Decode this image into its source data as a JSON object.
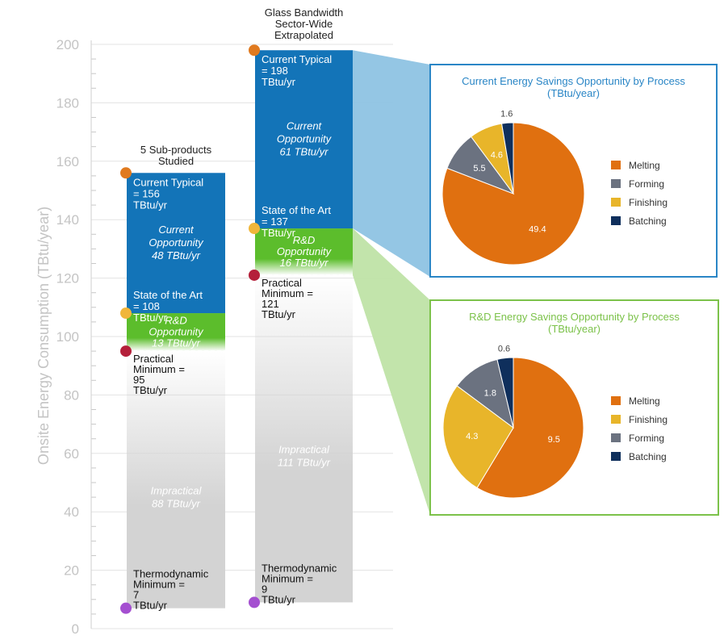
{
  "chart_data": [
    {
      "type": "bar",
      "subtype": "stacked-range",
      "ylabel": "Onsite Energy Consumption (TBtu/year)",
      "ylim": [
        0,
        200
      ],
      "yticks": [
        "0",
        "20",
        "40",
        "60",
        "80",
        "100",
        "120",
        "140",
        "160",
        "180",
        "200"
      ],
      "grid": true,
      "bars": [
        {
          "title": "5 Sub-products Studied",
          "current_typical": 156,
          "state_of_art": 108,
          "practical_min": 95,
          "thermo_min": 7,
          "labels": {
            "current_typical": "Current Typical = 156 TBtu/yr",
            "current_opportunity": "Current Opportunity 48 TBtu/yr",
            "state_of_art": "State of the Art = 108 TBtu/yr",
            "rd_opportunity": "R&D Opportunity 13 TBtu/yr",
            "practical_min": "Practical Minimum = 95 TBtu/yr",
            "impractical": "Impractical 88 TBtu/yr",
            "thermo_min": "Thermodynamic Minimum = 7 TBtu/yr"
          }
        },
        {
          "title": "Glass Bandwidth Sector-Wide Extrapolated",
          "current_typical": 198,
          "state_of_art": 137,
          "practical_min": 121,
          "thermo_min": 9,
          "labels": {
            "current_typical": "Current Typical = 198 TBtu/yr",
            "current_opportunity": "Current Opportunity 61 TBtu/yr",
            "state_of_art": "State of the Art = 137 TBtu/yr",
            "rd_opportunity": "R&D Opportunity 16 TBtu/yr",
            "practical_min": "Practical Minimum = 121 TBtu/yr",
            "impractical": "Impractical 111 TBtu/yr",
            "thermo_min": "Thermodynamic Minimum = 9 TBtu/yr"
          }
        }
      ]
    },
    {
      "type": "pie",
      "title": "Current Energy Savings Opportunity by Process (TBtu/year)",
      "slices": [
        {
          "name": "Melting",
          "value": 49.4,
          "color": "#e07010"
        },
        {
          "name": "Forming",
          "value": 5.5,
          "color": "#6b7280"
        },
        {
          "name": "Finishing",
          "value": 4.6,
          "color": "#e8b52a"
        },
        {
          "name": "Batching",
          "value": 1.6,
          "color": "#0f2f5c"
        }
      ],
      "value_labels": [
        "49.4",
        "5.5",
        "4.6",
        "1.6"
      ],
      "legend": [
        "Melting",
        "Forming",
        "Finishing",
        "Batching"
      ],
      "legend_position": "right"
    },
    {
      "type": "pie",
      "title": "R&D Energy Savings Opportunity by Process (TBtu/year)",
      "slices": [
        {
          "name": "Melting",
          "value": 9.5,
          "color": "#e07010"
        },
        {
          "name": "Finishing",
          "value": 4.3,
          "color": "#e8b52a"
        },
        {
          "name": "Forming",
          "value": 1.8,
          "color": "#6b7280"
        },
        {
          "name": "Batching",
          "value": 0.6,
          "color": "#0f2f5c"
        }
      ],
      "value_labels": [
        "9.5",
        "4.3",
        "1.8",
        "0.6"
      ],
      "legend": [
        "Melting",
        "Finishing",
        "Forming",
        "Batching"
      ],
      "legend_position": "right"
    }
  ],
  "colors": {
    "current_blue": "#1374b8",
    "rd_green": "#5cbd2c",
    "impractical_gray": "#d3d3d3",
    "callout_blue": "#8ec3e3",
    "callout_green": "#bfe3a6",
    "box_blue_border": "#2a86c6",
    "box_green_border": "#7cc24a",
    "title_blue": "#2a86c6",
    "title_green": "#7cc24a",
    "dot_orange": "#e07a1f",
    "dot_yellow": "#f0b63a",
    "dot_red": "#b4203a",
    "dot_purple": "#a44fd0"
  }
}
